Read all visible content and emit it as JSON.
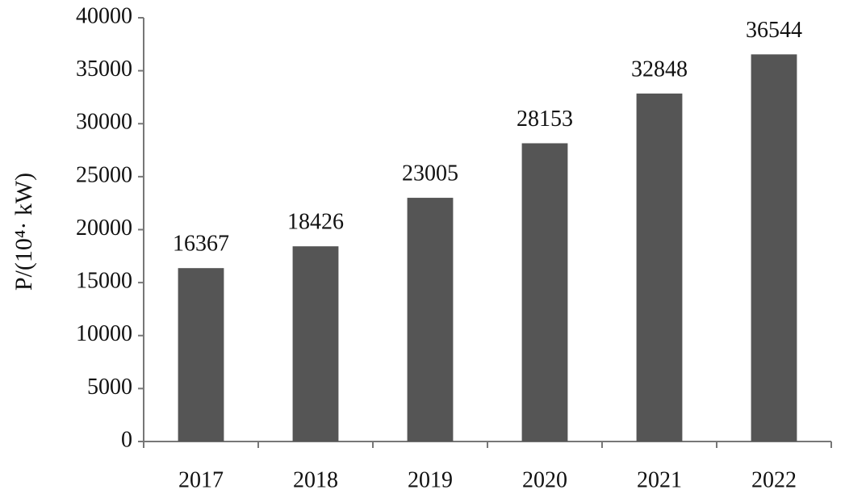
{
  "chart_data": {
    "type": "bar",
    "y_label": "P/(10⁴· kW)",
    "categories": [
      "2017",
      "2018",
      "2019",
      "2020",
      "2021",
      "2022"
    ],
    "values": [
      16367,
      18426,
      23005,
      28153,
      32848,
      36544
    ],
    "color": "#555555",
    "ylim": [
      0,
      40000
    ],
    "yticks": [
      0,
      5000,
      10000,
      15000,
      20000,
      25000,
      30000,
      35000,
      40000
    ],
    "grid": false
  }
}
